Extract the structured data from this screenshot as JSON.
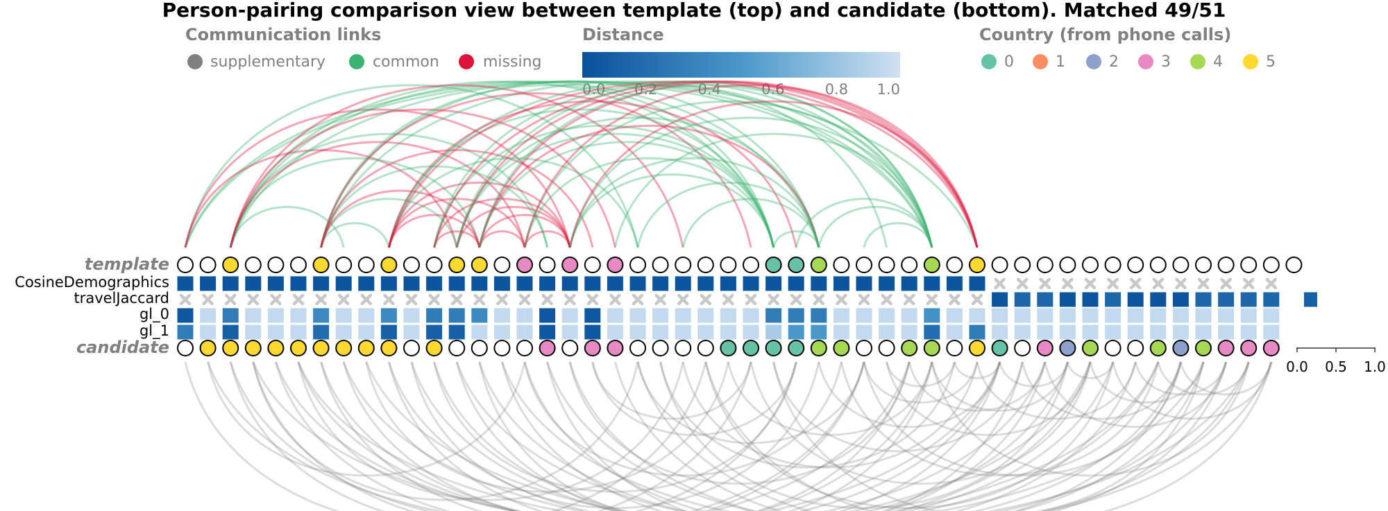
{
  "title": "Person-pairing comparison view between template (top) and candidate (bottom). Matched 49/51",
  "legend_links": {
    "title": "Communication links",
    "items": [
      {
        "label": "supplementary",
        "color": "#808080"
      },
      {
        "label": "common",
        "color": "#3cb371"
      },
      {
        "label": "missing",
        "color": "#dc143c"
      }
    ]
  },
  "legend_distance": {
    "title": "Distance",
    "ticks": [
      "0.0",
      "0.2",
      "0.4",
      "0.6",
      "0.8",
      "1.0"
    ],
    "color_start": "#08519c",
    "color_end": "#d0e1f2"
  },
  "legend_country": {
    "title": "Country (from phone calls)",
    "items": [
      {
        "label": "0",
        "color": "#66c2a5"
      },
      {
        "label": "1",
        "color": "#fc8d62"
      },
      {
        "label": "2",
        "color": "#8da0cb"
      },
      {
        "label": "3",
        "color": "#e78ac3"
      },
      {
        "label": "4",
        "color": "#a6d854"
      },
      {
        "label": "5",
        "color": "#ffd92f"
      }
    ]
  },
  "rows": {
    "template": "template",
    "features": [
      "CosineDemographics",
      "travelJaccard",
      "gl_0",
      "gl_1"
    ],
    "candidate": "candidate"
  },
  "scale_ticks": [
    "0.0",
    "0.5",
    "1.0"
  ],
  "template_nodes": [
    -1,
    -1,
    5,
    -1,
    -1,
    -1,
    5,
    -1,
    -1,
    5,
    -1,
    -1,
    5,
    5,
    -1,
    3,
    -1,
    3,
    -1,
    3,
    -1,
    -1,
    -1,
    -1,
    -1,
    -1,
    0,
    0,
    4,
    -1,
    -1,
    -1,
    -1,
    4,
    -1,
    5,
    -1,
    -1,
    -1,
    -1,
    -1,
    -1,
    -1,
    -1,
    -1,
    -1,
    -1,
    -1,
    -1,
    -1
  ],
  "candidate_nodes": [
    -1,
    5,
    5,
    5,
    5,
    5,
    5,
    5,
    5,
    5,
    -1,
    5,
    -1,
    -1,
    -1,
    -1,
    3,
    -1,
    3,
    3,
    -1,
    -1,
    -1,
    -1,
    0,
    0,
    0,
    0,
    4,
    4,
    -1,
    -1,
    4,
    4,
    -1,
    5,
    0,
    -1,
    3,
    2,
    4,
    -1,
    -1,
    4,
    2,
    4,
    3,
    3,
    3
  ],
  "features": {
    "CosineDemographics": [
      0.02,
      0.02,
      0.02,
      0.02,
      0.02,
      0.02,
      0.02,
      0.02,
      0.02,
      0.02,
      0.02,
      0.02,
      0.02,
      0.02,
      0.02,
      0.02,
      0.02,
      0.02,
      0.02,
      0.02,
      0.02,
      0.02,
      0.02,
      0.02,
      0.02,
      0.02,
      0.02,
      0.02,
      0.02,
      0.02,
      0.02,
      0.02,
      0.02,
      0.02,
      0.02,
      0.02,
      null,
      null,
      null,
      null,
      null,
      null,
      null,
      null,
      null,
      null,
      null,
      null,
      null
    ],
    "travelJaccard": [
      null,
      null,
      null,
      null,
      null,
      null,
      null,
      null,
      null,
      null,
      null,
      null,
      null,
      null,
      null,
      null,
      null,
      null,
      null,
      null,
      null,
      null,
      null,
      null,
      null,
      null,
      null,
      null,
      null,
      null,
      null,
      null,
      null,
      null,
      null,
      null,
      0.02,
      0.15,
      0.15,
      0.02,
      0.02,
      0.15,
      0.02,
      0.02,
      0.02,
      0.15,
      0.15,
      0.15,
      0.15
    ],
    "gl_0": [
      0.05,
      0.95,
      0.3,
      0.95,
      0.95,
      0.95,
      0.4,
      0.95,
      0.95,
      0.4,
      0.95,
      0.3,
      0.3,
      0.4,
      0.95,
      0.95,
      0.05,
      0.95,
      0.05,
      0.95,
      0.95,
      0.95,
      0.95,
      0.95,
      0.95,
      0.95,
      0.3,
      0.3,
      0.3,
      0.95,
      0.95,
      0.95,
      0.95,
      0.45,
      0.95,
      0.95,
      0.95,
      0.95,
      0.95,
      0.95,
      0.95,
      0.95,
      0.95,
      0.95,
      0.95,
      0.95,
      0.95,
      0.95,
      0.95
    ],
    "gl_1": [
      0.3,
      0.95,
      0.1,
      0.95,
      0.95,
      0.95,
      0.2,
      0.95,
      0.95,
      0.1,
      0.95,
      0.1,
      0.1,
      0.95,
      0.95,
      0.95,
      0.05,
      0.95,
      0.05,
      0.95,
      0.95,
      0.95,
      0.95,
      0.95,
      0.95,
      0.95,
      0.85,
      0.5,
      0.5,
      0.95,
      0.95,
      0.95,
      0.95,
      0.2,
      0.95,
      0.3,
      0.95,
      0.95,
      0.95,
      0.95,
      0.95,
      0.95,
      0.95,
      0.95,
      0.95,
      0.95,
      0.95,
      0.95,
      0.95
    ]
  },
  "links_top": [
    {
      "a": 0,
      "b": 20,
      "type": "common"
    },
    {
      "a": 0,
      "b": 33,
      "type": "common"
    },
    {
      "a": 0,
      "b": 35,
      "type": "common"
    },
    {
      "a": 0,
      "b": 17,
      "type": "missing"
    },
    {
      "a": 0,
      "b": 12,
      "type": "missing"
    },
    {
      "a": 2,
      "b": 28,
      "type": "common"
    },
    {
      "a": 2,
      "b": 26,
      "type": "common"
    },
    {
      "a": 2,
      "b": 16,
      "type": "common"
    },
    {
      "a": 2,
      "b": 13,
      "type": "common"
    },
    {
      "a": 2,
      "b": 7,
      "type": "common"
    },
    {
      "a": 2,
      "b": 33,
      "type": "common"
    },
    {
      "a": 2,
      "b": 19,
      "type": "missing"
    },
    {
      "a": 2,
      "b": 15,
      "type": "missing"
    },
    {
      "a": 2,
      "b": 22,
      "type": "missing"
    },
    {
      "a": 6,
      "b": 33,
      "type": "common"
    },
    {
      "a": 6,
      "b": 28,
      "type": "common"
    },
    {
      "a": 6,
      "b": 16,
      "type": "common"
    },
    {
      "a": 6,
      "b": 12,
      "type": "common"
    },
    {
      "a": 6,
      "b": 9,
      "type": "common"
    },
    {
      "a": 6,
      "b": 26,
      "type": "common"
    },
    {
      "a": 6,
      "b": 13,
      "type": "missing"
    },
    {
      "a": 6,
      "b": 18,
      "type": "missing"
    },
    {
      "a": 6,
      "b": 25,
      "type": "missing"
    },
    {
      "a": 9,
      "b": 26,
      "type": "common"
    },
    {
      "a": 9,
      "b": 20,
      "type": "common"
    },
    {
      "a": 9,
      "b": 33,
      "type": "common"
    },
    {
      "a": 9,
      "b": 13,
      "type": "missing"
    },
    {
      "a": 9,
      "b": 17,
      "type": "missing"
    },
    {
      "a": 9,
      "b": 35,
      "type": "missing"
    },
    {
      "a": 9,
      "b": 27,
      "type": "missing"
    },
    {
      "a": 9,
      "b": 15,
      "type": "missing"
    },
    {
      "a": 11,
      "b": 13,
      "type": "missing"
    },
    {
      "a": 11,
      "b": 17,
      "type": "missing"
    },
    {
      "a": 11,
      "b": 26,
      "type": "common"
    },
    {
      "a": 11,
      "b": 31,
      "type": "common"
    },
    {
      "a": 11,
      "b": 35,
      "type": "missing"
    },
    {
      "a": 12,
      "b": 17,
      "type": "missing"
    },
    {
      "a": 12,
      "b": 26,
      "type": "common"
    },
    {
      "a": 12,
      "b": 28,
      "type": "common"
    },
    {
      "a": 12,
      "b": 35,
      "type": "missing"
    },
    {
      "a": 12,
      "b": 33,
      "type": "common"
    },
    {
      "a": 13,
      "b": 15,
      "type": "missing"
    },
    {
      "a": 13,
      "b": 17,
      "type": "missing"
    },
    {
      "a": 13,
      "b": 28,
      "type": "missing"
    },
    {
      "a": 13,
      "b": 26,
      "type": "common"
    },
    {
      "a": 13,
      "b": 35,
      "type": "missing"
    },
    {
      "a": 13,
      "b": 33,
      "type": "common"
    },
    {
      "a": 15,
      "b": 17,
      "type": "missing"
    },
    {
      "a": 15,
      "b": 26,
      "type": "common"
    },
    {
      "a": 15,
      "b": 33,
      "type": "common"
    },
    {
      "a": 15,
      "b": 35,
      "type": "missing"
    },
    {
      "a": 17,
      "b": 26,
      "type": "common"
    },
    {
      "a": 17,
      "b": 28,
      "type": "common"
    },
    {
      "a": 17,
      "b": 33,
      "type": "common"
    },
    {
      "a": 17,
      "b": 35,
      "type": "missing"
    },
    {
      "a": 19,
      "b": 33,
      "type": "common"
    },
    {
      "a": 20,
      "b": 28,
      "type": "common"
    },
    {
      "a": 22,
      "b": 28,
      "type": "common"
    },
    {
      "a": 26,
      "b": 28,
      "type": "common"
    },
    {
      "a": 27,
      "b": 33,
      "type": "common"
    },
    {
      "a": 28,
      "b": 33,
      "type": "common"
    },
    {
      "a": 30,
      "b": 33,
      "type": "common"
    }
  ],
  "links_bottom": [
    {
      "a": 1,
      "b": 36
    },
    {
      "a": 2,
      "b": 32
    },
    {
      "a": 2,
      "b": 25
    },
    {
      "a": 3,
      "b": 27
    },
    {
      "a": 3,
      "b": 20
    },
    {
      "a": 3,
      "b": 43
    },
    {
      "a": 4,
      "b": 30
    },
    {
      "a": 4,
      "b": 40
    },
    {
      "a": 5,
      "b": 22
    },
    {
      "a": 5,
      "b": 38
    },
    {
      "a": 5,
      "b": 45
    },
    {
      "a": 6,
      "b": 30
    },
    {
      "a": 6,
      "b": 36
    },
    {
      "a": 7,
      "b": 33
    },
    {
      "a": 7,
      "b": 43
    },
    {
      "a": 8,
      "b": 24
    },
    {
      "a": 8,
      "b": 47
    },
    {
      "a": 9,
      "b": 32
    },
    {
      "a": 9,
      "b": 39
    },
    {
      "a": 10,
      "b": 28
    },
    {
      "a": 10,
      "b": 41
    },
    {
      "a": 11,
      "b": 27
    },
    {
      "a": 11,
      "b": 40
    },
    {
      "a": 12,
      "b": 36
    },
    {
      "a": 12,
      "b": 46
    },
    {
      "a": 13,
      "b": 33
    },
    {
      "a": 13,
      "b": 44
    },
    {
      "a": 14,
      "b": 38
    },
    {
      "a": 14,
      "b": 48
    },
    {
      "a": 15,
      "b": 29
    },
    {
      "a": 15,
      "b": 42
    },
    {
      "a": 16,
      "b": 37
    },
    {
      "a": 16,
      "b": 47
    },
    {
      "a": 17,
      "b": 32
    },
    {
      "a": 17,
      "b": 45
    },
    {
      "a": 18,
      "b": 27
    },
    {
      "a": 19,
      "b": 44
    },
    {
      "a": 20,
      "b": 30
    },
    {
      "a": 20,
      "b": 46
    },
    {
      "a": 21,
      "b": 39
    },
    {
      "a": 22,
      "b": 35
    },
    {
      "a": 23,
      "b": 41
    },
    {
      "a": 23,
      "b": 48
    },
    {
      "a": 24,
      "b": 33
    },
    {
      "a": 25,
      "b": 40
    },
    {
      "a": 26,
      "b": 37
    },
    {
      "a": 26,
      "b": 45
    },
    {
      "a": 28,
      "b": 36
    },
    {
      "a": 29,
      "b": 43
    },
    {
      "a": 30,
      "b": 35
    },
    {
      "a": 30,
      "b": 44
    },
    {
      "a": 31,
      "b": 34
    },
    {
      "a": 31,
      "b": 40
    },
    {
      "a": 32,
      "b": 38
    },
    {
      "a": 33,
      "b": 39
    },
    {
      "a": 33,
      "b": 47
    },
    {
      "a": 34,
      "b": 36
    },
    {
      "a": 35,
      "b": 42
    },
    {
      "a": 36,
      "b": 39
    },
    {
      "a": 37,
      "b": 44
    },
    {
      "a": 38,
      "b": 46
    },
    {
      "a": 39,
      "b": 41
    },
    {
      "a": 40,
      "b": 45
    },
    {
      "a": 41,
      "b": 48
    },
    {
      "a": 42,
      "b": 46
    },
    {
      "a": 43,
      "b": 47
    },
    {
      "a": 44,
      "b": 48
    },
    {
      "a": 1,
      "b": 15
    },
    {
      "a": 0,
      "b": 23
    },
    {
      "a": 21,
      "b": 34
    },
    {
      "a": 18,
      "b": 25
    }
  ],
  "lone_cell_value": 0.1
}
